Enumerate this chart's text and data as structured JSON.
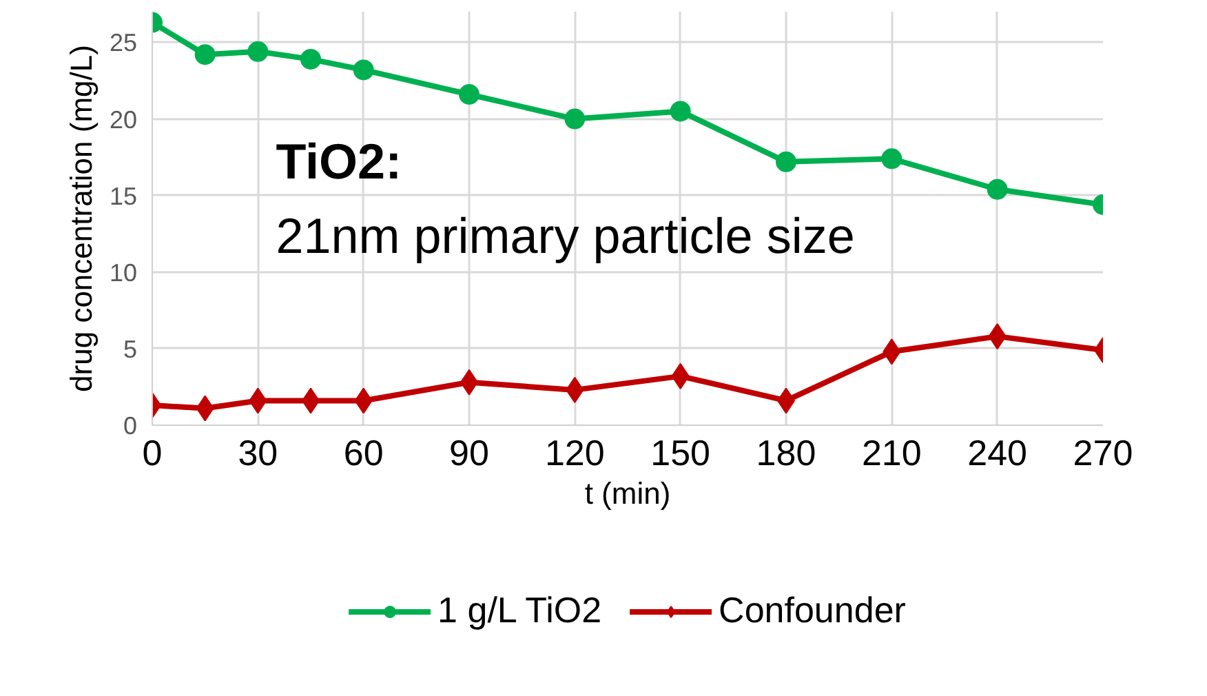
{
  "chart_data": {
    "type": "line",
    "xlabel": "t (min)",
    "ylabel": "drug concentration (mg/L)",
    "annotations": [
      "TiO2:",
      "21nm primary particle size"
    ],
    "x": [
      0,
      15,
      30,
      45,
      60,
      90,
      120,
      150,
      180,
      210,
      240,
      270
    ],
    "series": [
      {
        "name": "1 g/L TiO2",
        "color": "#00b050",
        "marker": "circle",
        "values": [
          26.3,
          24.2,
          24.4,
          23.9,
          23.2,
          21.6,
          20.0,
          20.5,
          17.2,
          17.4,
          15.4,
          14.4
        ]
      },
      {
        "name": "Confounder",
        "color": "#c00000",
        "marker": "diamond",
        "values": [
          1.3,
          1.1,
          1.6,
          1.6,
          1.6,
          2.8,
          2.3,
          3.2,
          1.6,
          4.8,
          5.8,
          4.9
        ]
      }
    ],
    "xlim": [
      0,
      270
    ],
    "xticks": [
      0,
      30,
      60,
      90,
      120,
      150,
      180,
      210,
      240,
      270
    ],
    "ylim": [
      0,
      27
    ],
    "yticks": [
      0,
      5,
      10,
      15,
      20,
      25
    ],
    "grid": true,
    "legend": "bottom",
    "line_style": "solid"
  }
}
